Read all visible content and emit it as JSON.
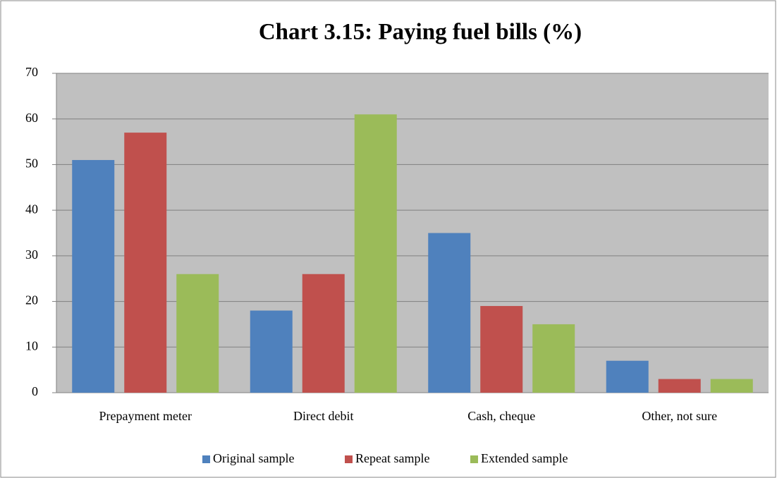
{
  "chart_data": {
    "type": "bar",
    "title": "Chart 3.15: Paying fuel bills (%)",
    "categories": [
      "Prepayment meter",
      "Direct debit",
      "Cash, cheque",
      "Other, not sure"
    ],
    "series": [
      {
        "name": "Original sample",
        "color": "#4f81bd",
        "values": [
          51,
          18,
          35,
          7
        ]
      },
      {
        "name": "Repeat sample",
        "color": "#c0504d",
        "values": [
          57,
          26,
          19,
          3
        ]
      },
      {
        "name": "Extended sample",
        "color": "#9bbb59",
        "values": [
          26,
          61,
          15,
          3
        ]
      }
    ],
    "ylim": [
      0,
      70
    ],
    "yticks": [
      0,
      10,
      20,
      30,
      40,
      50,
      60,
      70
    ],
    "grid": true,
    "legend": "bottom"
  }
}
